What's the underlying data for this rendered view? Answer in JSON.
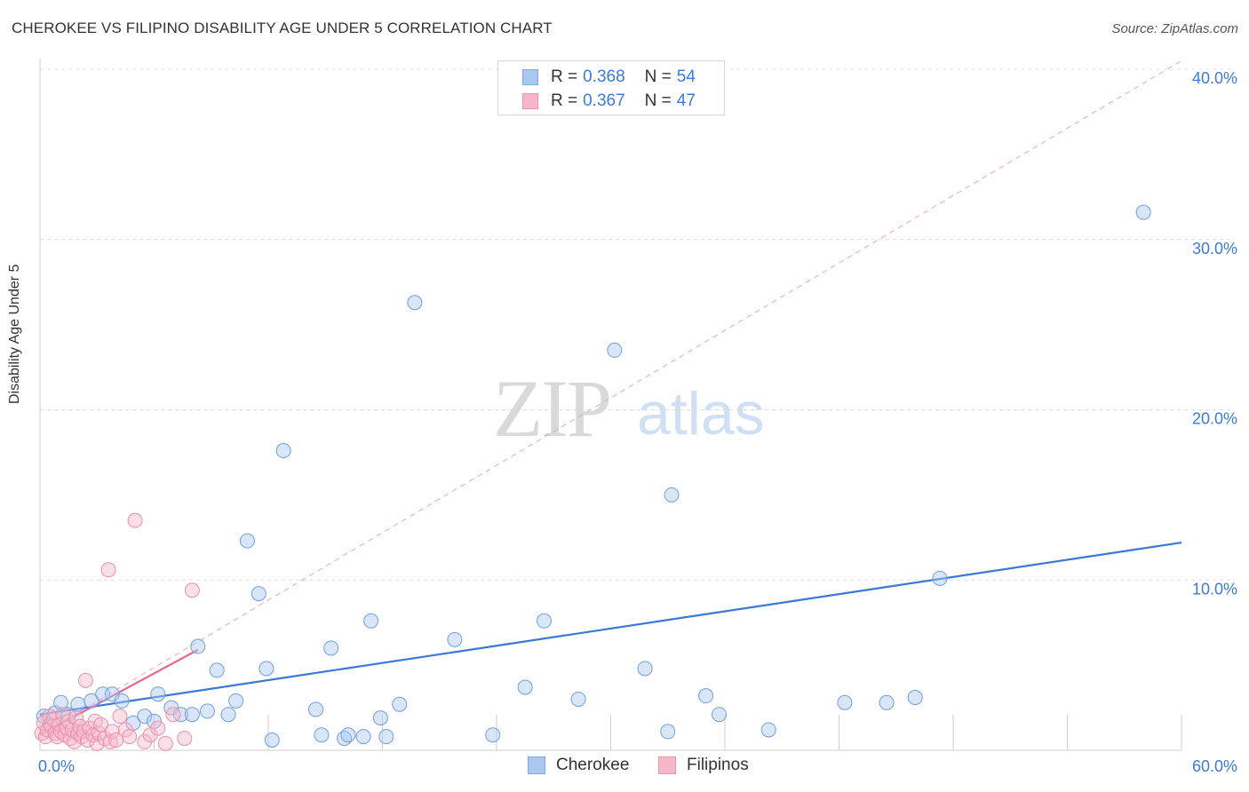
{
  "header": {
    "title": "CHEROKEE VS FILIPINO DISABILITY AGE UNDER 5 CORRELATION CHART",
    "source": "Source: ZipAtlas.com"
  },
  "watermark": {
    "zip": "ZIP",
    "atlas": "atlas"
  },
  "legend": {
    "rows": [
      {
        "r_label": "R =",
        "r_value": "0.368",
        "n_label": "N =",
        "n_value": "54",
        "color": "#a9c8f0"
      },
      {
        "r_label": "R =",
        "r_value": "0.367",
        "n_label": "N =",
        "n_value": "47",
        "color": "#f6b8c9"
      }
    ]
  },
  "bottom_legend": {
    "cherokee": "Cherokee",
    "filipinos": "Filipinos"
  },
  "chart_data": {
    "type": "scatter",
    "title": "CHEROKEE VS FILIPINO DISABILITY AGE UNDER 5 CORRELATION CHART",
    "xlabel": "",
    "ylabel": "Disability Age Under 5",
    "xlim": [
      0,
      60
    ],
    "ylim": [
      0,
      40
    ],
    "x_tick_labels": [
      "0.0%",
      "60.0%"
    ],
    "y_ticks": [
      10,
      20,
      30,
      40
    ],
    "y_tick_labels": [
      "10.0%",
      "20.0%",
      "30.0%",
      "40.0%"
    ],
    "grid": true,
    "colors": {
      "cherokee": "#3a78d6",
      "cherokee_fill": "#a9c8f0",
      "filipinos": "#e8668f",
      "filipinos_fill": "#f6b8c9",
      "tick_label": "#3b7bd4"
    },
    "series": [
      {
        "name": "Cherokee",
        "points": [
          [
            0.2,
            2.0
          ],
          [
            0.5,
            1.5
          ],
          [
            0.8,
            2.2
          ],
          [
            1.1,
            2.8
          ],
          [
            1.5,
            2.1
          ],
          [
            2.0,
            2.7
          ],
          [
            2.7,
            2.9
          ],
          [
            3.3,
            3.3
          ],
          [
            3.8,
            3.3
          ],
          [
            4.3,
            2.9
          ],
          [
            4.9,
            1.6
          ],
          [
            5.5,
            2.0
          ],
          [
            6.0,
            1.7
          ],
          [
            6.2,
            3.3
          ],
          [
            6.9,
            2.5
          ],
          [
            7.4,
            2.1
          ],
          [
            8.0,
            2.1
          ],
          [
            8.3,
            6.1
          ],
          [
            8.8,
            2.3
          ],
          [
            9.3,
            4.7
          ],
          [
            9.9,
            2.1
          ],
          [
            10.3,
            2.9
          ],
          [
            10.9,
            12.3
          ],
          [
            11.5,
            9.2
          ],
          [
            11.9,
            4.8
          ],
          [
            12.2,
            0.6
          ],
          [
            12.8,
            17.6
          ],
          [
            14.5,
            2.4
          ],
          [
            14.8,
            0.9
          ],
          [
            15.3,
            6.0
          ],
          [
            16.0,
            0.7
          ],
          [
            16.2,
            0.9
          ],
          [
            17.0,
            0.8
          ],
          [
            17.4,
            7.6
          ],
          [
            17.9,
            1.9
          ],
          [
            18.2,
            0.8
          ],
          [
            18.9,
            2.7
          ],
          [
            19.7,
            26.3
          ],
          [
            21.8,
            6.5
          ],
          [
            23.8,
            0.9
          ],
          [
            25.5,
            3.7
          ],
          [
            26.5,
            7.6
          ],
          [
            28.3,
            3.0
          ],
          [
            30.2,
            23.5
          ],
          [
            31.8,
            4.8
          ],
          [
            33.0,
            1.1
          ],
          [
            33.2,
            15.0
          ],
          [
            35.0,
            3.2
          ],
          [
            35.7,
            2.1
          ],
          [
            38.3,
            1.2
          ],
          [
            42.3,
            2.8
          ],
          [
            44.5,
            2.8
          ],
          [
            46.0,
            3.1
          ],
          [
            47.3,
            10.1
          ],
          [
            58.0,
            31.6
          ]
        ],
        "trend": {
          "x": [
            0,
            60
          ],
          "y": [
            2.1,
            12.2
          ]
        }
      },
      {
        "name": "Filipinos",
        "points": [
          [
            0.1,
            1.0
          ],
          [
            0.2,
            1.6
          ],
          [
            0.3,
            0.8
          ],
          [
            0.4,
            1.2
          ],
          [
            0.5,
            2.0
          ],
          [
            0.6,
            1.4
          ],
          [
            0.7,
            1.8
          ],
          [
            0.8,
            1.0
          ],
          [
            0.9,
            0.8
          ],
          [
            1.0,
            1.5
          ],
          [
            1.1,
            1.1
          ],
          [
            1.2,
            2.1
          ],
          [
            1.3,
            0.9
          ],
          [
            1.4,
            1.3
          ],
          [
            1.5,
            1.7
          ],
          [
            1.6,
            0.7
          ],
          [
            1.7,
            1.2
          ],
          [
            1.8,
            0.5
          ],
          [
            1.9,
            1.9
          ],
          [
            2.0,
            1.0
          ],
          [
            2.1,
            1.4
          ],
          [
            2.2,
            0.8
          ],
          [
            2.3,
            1.1
          ],
          [
            2.4,
            4.1
          ],
          [
            2.5,
            0.6
          ],
          [
            2.6,
            1.3
          ],
          [
            2.8,
            0.9
          ],
          [
            2.9,
            1.7
          ],
          [
            3.0,
            0.4
          ],
          [
            3.1,
            1.0
          ],
          [
            3.2,
            1.5
          ],
          [
            3.4,
            0.7
          ],
          [
            3.6,
            10.6
          ],
          [
            3.7,
            0.5
          ],
          [
            3.8,
            1.1
          ],
          [
            4.0,
            0.6
          ],
          [
            4.2,
            2.0
          ],
          [
            4.5,
            1.2
          ],
          [
            4.7,
            0.8
          ],
          [
            5.0,
            13.5
          ],
          [
            5.5,
            0.5
          ],
          [
            5.8,
            0.9
          ],
          [
            6.2,
            1.3
          ],
          [
            6.6,
            0.4
          ],
          [
            7.0,
            2.1
          ],
          [
            7.6,
            0.7
          ],
          [
            8.0,
            9.4
          ]
        ],
        "trend": {
          "x": [
            0,
            8.3
          ],
          "y": [
            0.9,
            5.9
          ]
        },
        "trend_extended": {
          "x": [
            0,
            60
          ],
          "y": [
            0.9,
            40.5
          ]
        }
      }
    ]
  }
}
